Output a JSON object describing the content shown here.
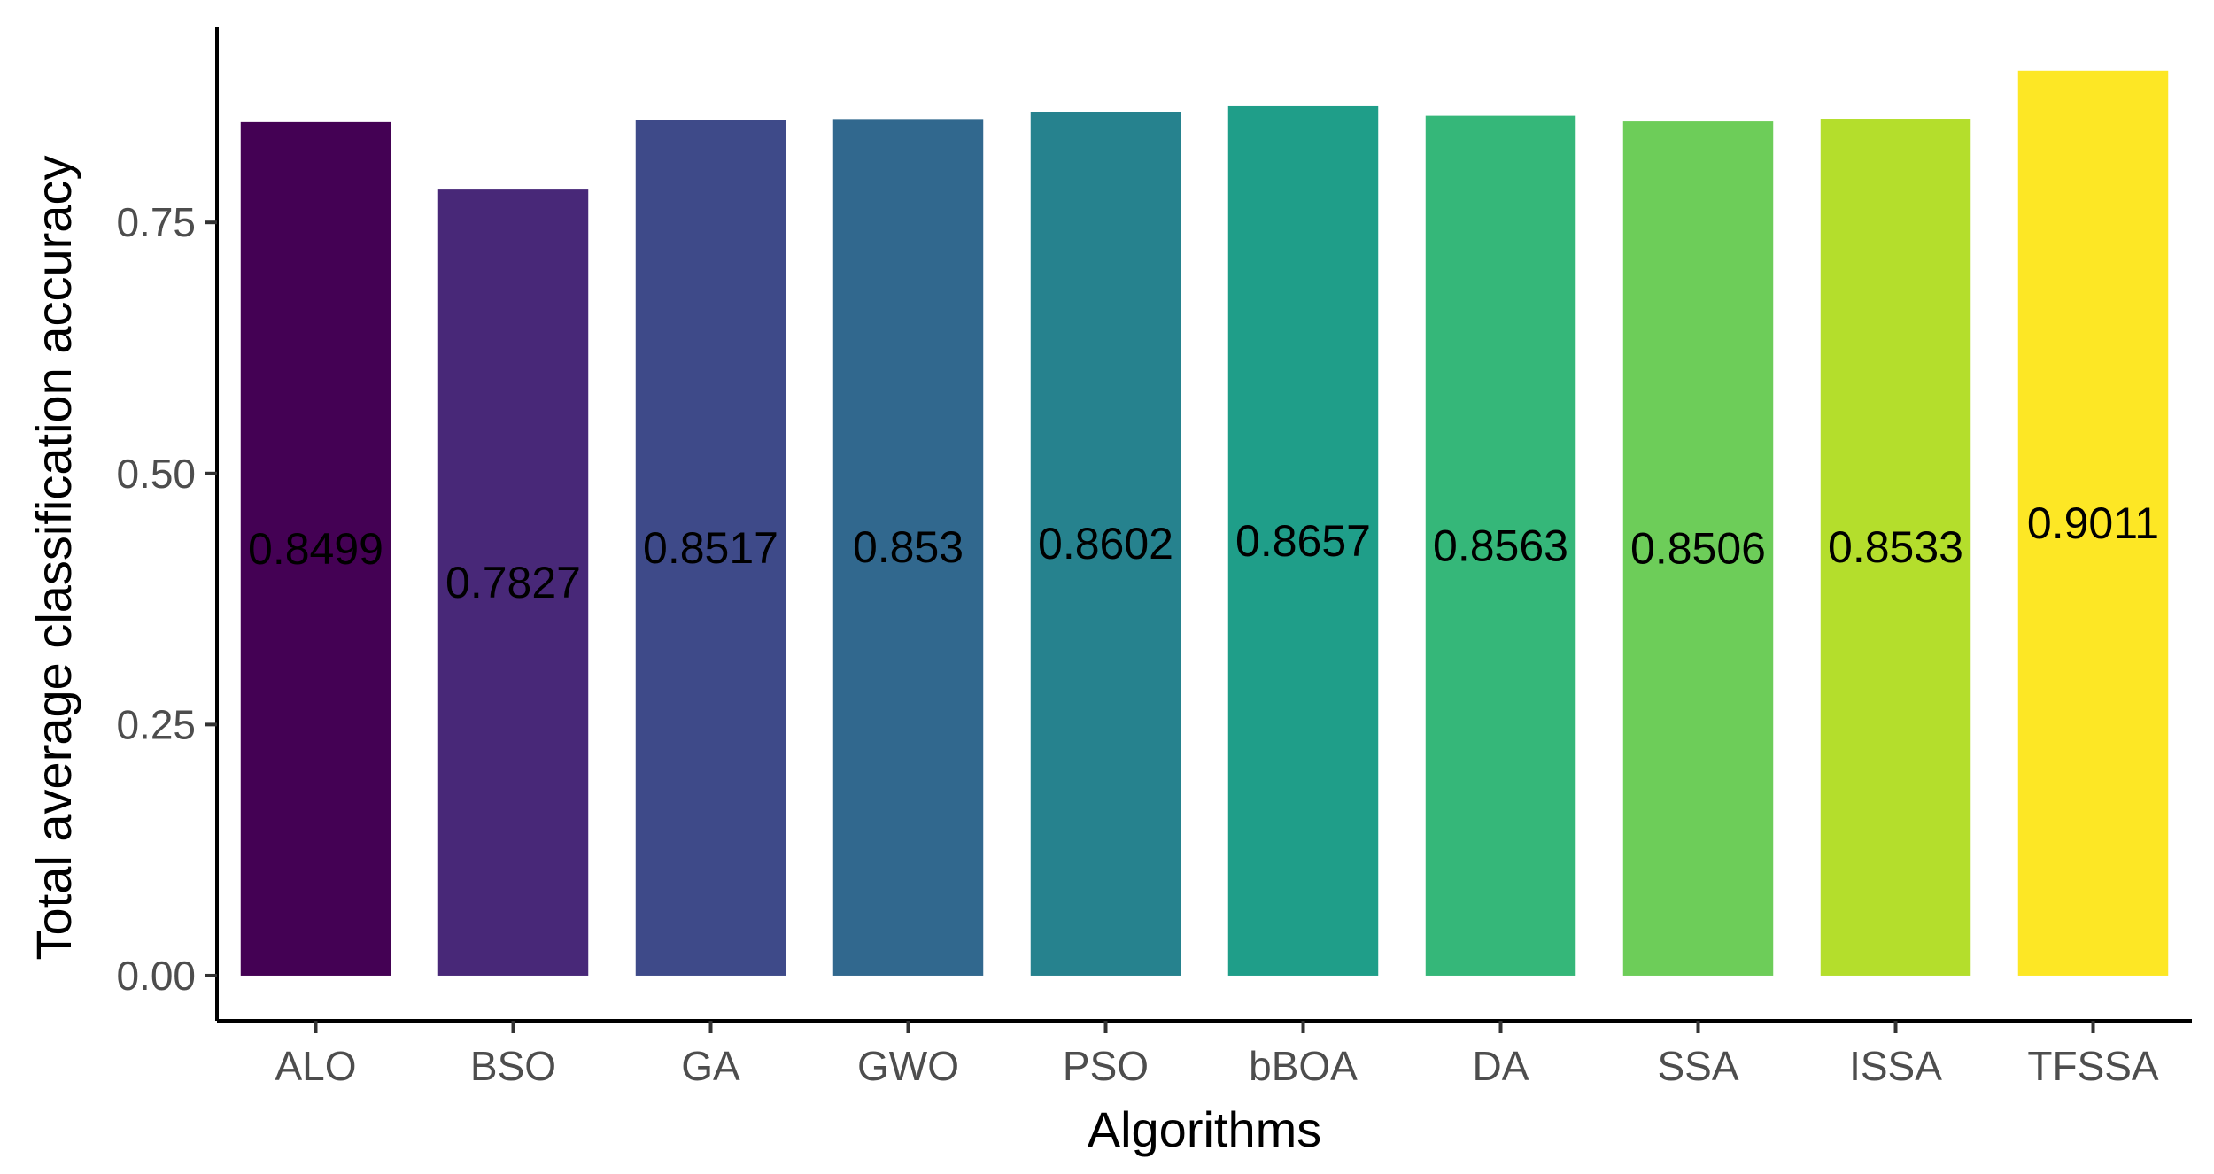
{
  "chart_data": {
    "type": "bar",
    "title": "",
    "xlabel": "Algorithms",
    "ylabel": "Total average classification accuracy",
    "categories": [
      "ALO",
      "BSO",
      "GA",
      "GWO",
      "PSO",
      "bBOA",
      "DA",
      "SSA",
      "ISSA",
      "TFSSA"
    ],
    "values": [
      0.8499,
      0.7827,
      0.8517,
      0.853,
      0.8602,
      0.8657,
      0.8563,
      0.8506,
      0.8533,
      0.9011
    ],
    "data_labels": [
      "0.8499",
      "0.7827",
      "0.8517",
      "0.853",
      "0.8602",
      "0.8657",
      "0.8563",
      "0.8506",
      "0.8533",
      "0.9011"
    ],
    "colors": [
      "#440154",
      "#482878",
      "#3E4A89",
      "#31688E",
      "#26828E",
      "#1F9E89",
      "#35B779",
      "#6DCD59",
      "#B4DE2C",
      "#FDE725"
    ],
    "y_ticks": [
      0,
      0.25,
      0.5,
      0.75
    ],
    "y_tick_labels": [
      "0.00",
      "0.25",
      "0.50",
      "0.75"
    ],
    "ylim": [
      -0.045,
      0.945
    ],
    "grid": false,
    "legend": "none"
  }
}
